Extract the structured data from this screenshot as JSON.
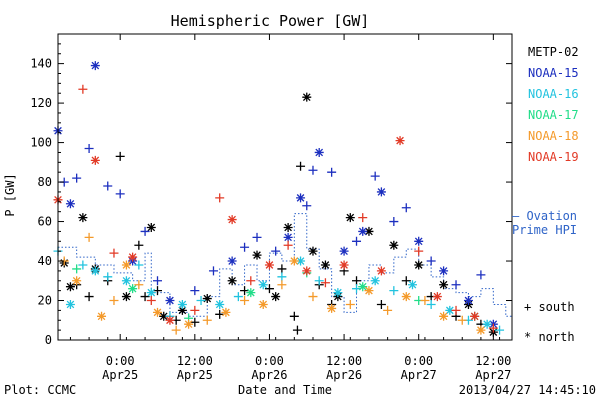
{
  "chart_data": {
    "type": "scatter",
    "title": "Hemispheric Power [GW]",
    "ylabel": "P [GW]",
    "xlabel": "Date and Time",
    "ylim": [
      0,
      155
    ],
    "yticks": [
      0,
      20,
      40,
      60,
      80,
      100,
      120,
      140
    ],
    "xlim": [
      "2013-04-24 14:00",
      "2013-04-27 15:00"
    ],
    "xticks": [
      {
        "x": "2013-04-25 00:00",
        "label": [
          "0:00",
          "Apr25"
        ]
      },
      {
        "x": "2013-04-25 12:00",
        "label": [
          "12:00",
          "Apr25"
        ]
      },
      {
        "x": "2013-04-26 00:00",
        "label": [
          "0:00",
          "Apr26"
        ]
      },
      {
        "x": "2013-04-26 12:00",
        "label": [
          "12:00",
          "Apr26"
        ]
      },
      {
        "x": "2013-04-27 00:00",
        "label": [
          "0:00",
          "Apr27"
        ]
      },
      {
        "x": "2013-04-27 12:00",
        "label": [
          "12:00",
          "Apr27"
        ]
      }
    ],
    "legend": {
      "position": "right",
      "entries": [
        {
          "name": "METP-02",
          "color": "#000000"
        },
        {
          "name": "NOAA-15",
          "color": "#1c2fbf"
        },
        {
          "name": "NOAA-16",
          "color": "#22c3df"
        },
        {
          "name": "NOAA-17",
          "color": "#21dd89"
        },
        {
          "name": "NOAA-18",
          "color": "#f49a2b"
        },
        {
          "name": "NOAA-19",
          "color": "#e23a26"
        }
      ],
      "ovation": {
        "label": [
          "– Ovation",
          "Prime HPI"
        ],
        "color": "#2f64c8"
      },
      "markers": [
        {
          "symbol": "+",
          "label": "south"
        },
        {
          "symbol": "*",
          "label": "north"
        }
      ]
    },
    "footer": {
      "left": "Plot: CCMC",
      "right": "2013/04/27 14:45:10"
    },
    "ovation_hpi": [
      [
        "2013-04-24 14:00",
        47
      ],
      [
        "2013-04-24 17:00",
        42
      ],
      [
        "2013-04-24 20:00",
        38
      ],
      [
        "2013-04-24 23:00",
        34
      ],
      [
        "2013-04-25 02:00",
        30
      ],
      [
        "2013-04-25 04:00",
        44
      ],
      [
        "2013-04-25 05:00",
        24
      ],
      [
        "2013-04-25 08:00",
        14
      ],
      [
        "2013-04-25 11:00",
        12
      ],
      [
        "2013-04-25 14:00",
        22
      ],
      [
        "2013-04-25 16:00",
        36
      ],
      [
        "2013-04-25 18:00",
        28
      ],
      [
        "2013-04-25 20:00",
        38
      ],
      [
        "2013-04-25 22:00",
        30
      ],
      [
        "2013-04-26 00:00",
        44
      ],
      [
        "2013-04-26 02:00",
        40
      ],
      [
        "2013-04-26 04:00",
        64
      ],
      [
        "2013-04-26 06:00",
        46
      ],
      [
        "2013-04-26 08:00",
        36
      ],
      [
        "2013-04-26 10:00",
        22
      ],
      [
        "2013-04-26 12:00",
        14
      ],
      [
        "2013-04-26 14:00",
        30
      ],
      [
        "2013-04-26 16:00",
        38
      ],
      [
        "2013-04-26 18:00",
        34
      ],
      [
        "2013-04-26 20:00",
        42
      ],
      [
        "2013-04-26 22:00",
        46
      ],
      [
        "2013-04-27 00:00",
        38
      ],
      [
        "2013-04-27 02:00",
        32
      ],
      [
        "2013-04-27 04:00",
        26
      ],
      [
        "2013-04-27 06:00",
        24
      ],
      [
        "2013-04-27 08:00",
        22
      ],
      [
        "2013-04-27 10:00",
        26
      ],
      [
        "2013-04-27 12:00",
        18
      ],
      [
        "2013-04-27 14:00",
        12
      ],
      [
        "2013-04-27 15:00",
        28
      ]
    ],
    "series": [
      {
        "name": "METP-02",
        "color": "#000000",
        "points": [
          [
            "2013-04-24 15:00",
            39,
            "N"
          ],
          [
            "2013-04-24 16:00",
            27,
            "N"
          ],
          [
            "2013-04-24 17:00",
            28,
            "S"
          ],
          [
            "2013-04-24 18:00",
            62,
            "N"
          ],
          [
            "2013-04-24 19:00",
            22,
            "S"
          ],
          [
            "2013-04-24 20:00",
            36,
            "N"
          ],
          [
            "2013-04-24 22:00",
            30,
            "S"
          ],
          [
            "2013-04-25 00:00",
            93,
            "S"
          ],
          [
            "2013-04-25 01:00",
            22,
            "N"
          ],
          [
            "2013-04-25 03:00",
            48,
            "S"
          ],
          [
            "2013-04-25 04:00",
            22,
            "S"
          ],
          [
            "2013-04-25 05:00",
            57,
            "N"
          ],
          [
            "2013-04-25 06:00",
            25,
            "S"
          ],
          [
            "2013-04-25 07:00",
            12,
            "N"
          ],
          [
            "2013-04-25 09:00",
            10,
            "S"
          ],
          [
            "2013-04-25 10:00",
            15,
            "N"
          ],
          [
            "2013-04-25 12:00",
            9,
            "S"
          ],
          [
            "2013-04-25 14:00",
            21,
            "N"
          ],
          [
            "2013-04-25 16:00",
            13,
            "S"
          ],
          [
            "2013-04-25 18:00",
            30,
            "N"
          ],
          [
            "2013-04-25 20:00",
            25,
            "S"
          ],
          [
            "2013-04-25 22:00",
            43,
            "N"
          ],
          [
            "2013-04-26 00:00",
            26,
            "S"
          ],
          [
            "2013-04-26 01:00",
            22,
            "N"
          ],
          [
            "2013-04-26 02:00",
            36,
            "S"
          ],
          [
            "2013-04-26 03:00",
            57,
            "N"
          ],
          [
            "2013-04-26 04:00",
            12,
            "S"
          ],
          [
            "2013-04-26 05:00",
            88,
            "S"
          ],
          [
            "2013-04-26 06:00",
            123,
            "N"
          ],
          [
            "2013-04-26 07:00",
            45,
            "N"
          ],
          [
            "2013-04-26 08:00",
            28,
            "S"
          ],
          [
            "2013-04-26 09:00",
            38,
            "N"
          ],
          [
            "2013-04-26 10:00",
            18,
            "S"
          ],
          [
            "2013-04-26 11:00",
            22,
            "N"
          ],
          [
            "2013-04-26 12:00",
            35,
            "S"
          ],
          [
            "2013-04-26 13:00",
            62,
            "N"
          ],
          [
            "2013-04-26 14:00",
            30,
            "S"
          ],
          [
            "2013-04-26 16:00",
            55,
            "N"
          ],
          [
            "2013-04-26 18:00",
            18,
            "S"
          ],
          [
            "2013-04-26 20:00",
            48,
            "N"
          ],
          [
            "2013-04-26 22:00",
            30,
            "S"
          ],
          [
            "2013-04-27 00:00",
            38,
            "N"
          ],
          [
            "2013-04-27 02:00",
            22,
            "S"
          ],
          [
            "2013-04-27 04:00",
            28,
            "N"
          ],
          [
            "2013-04-27 06:00",
            12,
            "S"
          ],
          [
            "2013-04-27 08:00",
            18,
            "N"
          ],
          [
            "2013-04-27 10:00",
            8,
            "S"
          ],
          [
            "2013-04-27 12:00",
            4,
            "N"
          ],
          [
            "2013-04-26 04:30",
            5,
            "S"
          ]
        ]
      },
      {
        "name": "NOAA-15",
        "color": "#1c2fbf",
        "points": [
          [
            "2013-04-24 14:00",
            106,
            "N"
          ],
          [
            "2013-04-24 15:00",
            80,
            "S"
          ],
          [
            "2013-04-24 16:00",
            69,
            "N"
          ],
          [
            "2013-04-24 17:00",
            82,
            "S"
          ],
          [
            "2013-04-24 19:00",
            97,
            "S"
          ],
          [
            "2013-04-24 20:00",
            139,
            "N"
          ],
          [
            "2013-04-24 22:00",
            78,
            "S"
          ],
          [
            "2013-04-25 00:00",
            74,
            "S"
          ],
          [
            "2013-04-25 02:00",
            40,
            "N"
          ],
          [
            "2013-04-25 04:00",
            55,
            "S"
          ],
          [
            "2013-04-25 06:00",
            30,
            "S"
          ],
          [
            "2013-04-25 08:00",
            20,
            "N"
          ],
          [
            "2013-04-25 12:00",
            25,
            "S"
          ],
          [
            "2013-04-25 15:00",
            35,
            "S"
          ],
          [
            "2013-04-25 18:00",
            40,
            "N"
          ],
          [
            "2013-04-25 20:00",
            47,
            "S"
          ],
          [
            "2013-04-25 22:00",
            52,
            "S"
          ],
          [
            "2013-04-26 01:00",
            45,
            "S"
          ],
          [
            "2013-04-26 03:00",
            52,
            "N"
          ],
          [
            "2013-04-26 05:00",
            72,
            "N"
          ],
          [
            "2013-04-26 06:00",
            68,
            "S"
          ],
          [
            "2013-04-26 07:00",
            86,
            "S"
          ],
          [
            "2013-04-26 08:00",
            95,
            "N"
          ],
          [
            "2013-04-26 10:00",
            85,
            "S"
          ],
          [
            "2013-04-26 12:00",
            45,
            "N"
          ],
          [
            "2013-04-26 14:00",
            50,
            "S"
          ],
          [
            "2013-04-26 15:00",
            55,
            "N"
          ],
          [
            "2013-04-26 17:00",
            83,
            "S"
          ],
          [
            "2013-04-26 18:00",
            75,
            "N"
          ],
          [
            "2013-04-26 20:00",
            60,
            "S"
          ],
          [
            "2013-04-26 22:00",
            67,
            "S"
          ],
          [
            "2013-04-27 00:00",
            50,
            "N"
          ],
          [
            "2013-04-27 02:00",
            40,
            "S"
          ],
          [
            "2013-04-27 04:00",
            35,
            "N"
          ],
          [
            "2013-04-27 06:00",
            28,
            "S"
          ],
          [
            "2013-04-27 08:00",
            20,
            "N"
          ],
          [
            "2013-04-27 10:00",
            33,
            "S"
          ],
          [
            "2013-04-27 12:00",
            8,
            "N"
          ]
        ]
      },
      {
        "name": "NOAA-16",
        "color": "#22c3df",
        "points": [
          [
            "2013-04-24 14:00",
            45,
            "S"
          ],
          [
            "2013-04-24 16:00",
            18,
            "N"
          ],
          [
            "2013-04-24 18:00",
            38,
            "S"
          ],
          [
            "2013-04-24 20:00",
            35,
            "N"
          ],
          [
            "2013-04-24 22:00",
            32,
            "S"
          ],
          [
            "2013-04-25 01:00",
            30,
            "N"
          ],
          [
            "2013-04-25 03:00",
            38,
            "S"
          ],
          [
            "2013-04-25 05:00",
            24,
            "N"
          ],
          [
            "2013-04-25 08:00",
            12,
            "S"
          ],
          [
            "2013-04-25 10:00",
            18,
            "N"
          ],
          [
            "2013-04-25 13:00",
            20,
            "S"
          ],
          [
            "2013-04-25 16:00",
            18,
            "N"
          ],
          [
            "2013-04-25 19:00",
            22,
            "S"
          ],
          [
            "2013-04-25 23:00",
            28,
            "N"
          ],
          [
            "2013-04-26 02:00",
            32,
            "S"
          ],
          [
            "2013-04-26 05:00",
            40,
            "N"
          ],
          [
            "2013-04-26 08:00",
            30,
            "S"
          ],
          [
            "2013-04-26 11:00",
            24,
            "N"
          ],
          [
            "2013-04-26 14:00",
            26,
            "S"
          ],
          [
            "2013-04-26 17:00",
            30,
            "N"
          ],
          [
            "2013-04-26 20:00",
            25,
            "S"
          ],
          [
            "2013-04-26 23:00",
            28,
            "N"
          ],
          [
            "2013-04-27 02:00",
            18,
            "S"
          ],
          [
            "2013-04-27 05:00",
            15,
            "N"
          ],
          [
            "2013-04-27 08:00",
            10,
            "S"
          ],
          [
            "2013-04-27 11:00",
            8,
            "N"
          ],
          [
            "2013-04-27 13:00",
            5,
            "S"
          ]
        ]
      },
      {
        "name": "NOAA-17",
        "color": "#21dd89",
        "points": [
          [
            "2013-04-24 17:00",
            36,
            "S"
          ],
          [
            "2013-04-25 02:00",
            26,
            "N"
          ],
          [
            "2013-04-25 11:00",
            11,
            "S"
          ],
          [
            "2013-04-25 21:00",
            24,
            "N"
          ],
          [
            "2013-04-26 06:00",
            34,
            "S"
          ],
          [
            "2013-04-26 15:00",
            27,
            "N"
          ],
          [
            "2013-04-27 00:00",
            20,
            "S"
          ],
          [
            "2013-04-27 09:00",
            12,
            "N"
          ]
        ]
      },
      {
        "name": "NOAA-18",
        "color": "#f49a2b",
        "points": [
          [
            "2013-04-24 15:00",
            40,
            "S"
          ],
          [
            "2013-04-24 17:00",
            30,
            "N"
          ],
          [
            "2013-04-24 19:00",
            52,
            "S"
          ],
          [
            "2013-04-24 21:00",
            12,
            "N"
          ],
          [
            "2013-04-24 23:00",
            20,
            "S"
          ],
          [
            "2013-04-25 01:00",
            38,
            "N"
          ],
          [
            "2013-04-25 03:00",
            28,
            "S"
          ],
          [
            "2013-04-25 06:00",
            14,
            "N"
          ],
          [
            "2013-04-25 09:00",
            5,
            "S"
          ],
          [
            "2013-04-25 11:00",
            8,
            "N"
          ],
          [
            "2013-04-25 14:00",
            10,
            "S"
          ],
          [
            "2013-04-25 17:00",
            14,
            "N"
          ],
          [
            "2013-04-25 20:00",
            20,
            "S"
          ],
          [
            "2013-04-25 23:00",
            18,
            "N"
          ],
          [
            "2013-04-26 02:00",
            28,
            "S"
          ],
          [
            "2013-04-26 04:00",
            40,
            "N"
          ],
          [
            "2013-04-26 07:00",
            22,
            "S"
          ],
          [
            "2013-04-26 10:00",
            16,
            "N"
          ],
          [
            "2013-04-26 13:00",
            18,
            "S"
          ],
          [
            "2013-04-26 16:00",
            25,
            "N"
          ],
          [
            "2013-04-26 19:00",
            15,
            "S"
          ],
          [
            "2013-04-26 22:00",
            22,
            "N"
          ],
          [
            "2013-04-27 01:00",
            20,
            "S"
          ],
          [
            "2013-04-27 04:00",
            12,
            "N"
          ],
          [
            "2013-04-27 07:00",
            10,
            "S"
          ],
          [
            "2013-04-27 10:00",
            5,
            "N"
          ]
        ]
      },
      {
        "name": "NOAA-19",
        "color": "#e23a26",
        "points": [
          [
            "2013-04-24 14:00",
            71,
            "N"
          ],
          [
            "2013-04-24 18:00",
            127,
            "S"
          ],
          [
            "2013-04-24 20:00",
            91,
            "N"
          ],
          [
            "2013-04-24 23:00",
            44,
            "S"
          ],
          [
            "2013-04-25 02:00",
            42,
            "N"
          ],
          [
            "2013-04-25 05:00",
            20,
            "S"
          ],
          [
            "2013-04-25 08:00",
            10,
            "N"
          ],
          [
            "2013-04-25 12:00",
            15,
            "S"
          ],
          [
            "2013-04-25 16:00",
            72,
            "S"
          ],
          [
            "2013-04-25 18:00",
            61,
            "N"
          ],
          [
            "2013-04-25 21:00",
            30,
            "S"
          ],
          [
            "2013-04-26 00:00",
            38,
            "N"
          ],
          [
            "2013-04-26 03:00",
            48,
            "S"
          ],
          [
            "2013-04-26 06:00",
            35,
            "N"
          ],
          [
            "2013-04-26 09:00",
            29,
            "S"
          ],
          [
            "2013-04-26 12:00",
            38,
            "N"
          ],
          [
            "2013-04-26 15:00",
            62,
            "S"
          ],
          [
            "2013-04-26 18:00",
            35,
            "N"
          ],
          [
            "2013-04-26 21:00",
            101,
            "N"
          ],
          [
            "2013-04-27 00:00",
            45,
            "S"
          ],
          [
            "2013-04-27 03:00",
            22,
            "N"
          ],
          [
            "2013-04-27 06:00",
            15,
            "S"
          ],
          [
            "2013-04-27 09:00",
            12,
            "N"
          ],
          [
            "2013-04-27 12:00",
            6,
            "S"
          ]
        ]
      }
    ]
  }
}
